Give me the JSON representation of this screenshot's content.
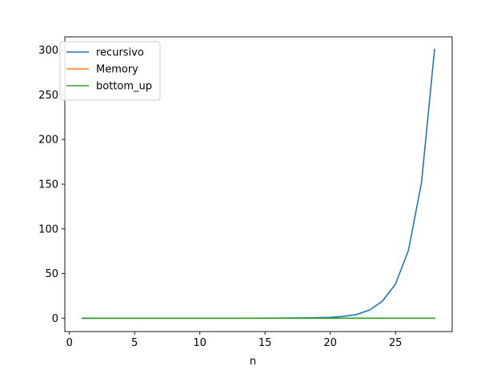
{
  "chart_data": {
    "type": "line",
    "title": "",
    "xlabel": "n",
    "ylabel": "",
    "xlim": [
      -0.35,
      29.35
    ],
    "ylim": [
      -15,
      315
    ],
    "xticks": [
      0,
      5,
      10,
      15,
      20,
      25
    ],
    "yticks": [
      0,
      50,
      100,
      150,
      200,
      250,
      300
    ],
    "grid": false,
    "legend": "top-left",
    "x": [
      1,
      2,
      3,
      4,
      5,
      6,
      7,
      8,
      9,
      10,
      11,
      12,
      13,
      14,
      15,
      16,
      17,
      18,
      19,
      20,
      21,
      22,
      23,
      24,
      25,
      26,
      27,
      28
    ],
    "series": [
      {
        "name": "recursivo",
        "color": "#1f77b4",
        "values": [
          0,
          0,
          0,
          0,
          0,
          0,
          0,
          0,
          0,
          0,
          0,
          0,
          0,
          0,
          0.1,
          0.1,
          0.2,
          0.3,
          0.5,
          0.9,
          2,
          4,
          9,
          19,
          38,
          76,
          152,
          301
        ]
      },
      {
        "name": "Memory",
        "color": "#ff7f0e",
        "values": [
          0,
          0,
          0,
          0,
          0,
          0,
          0,
          0,
          0,
          0,
          0,
          0,
          0,
          0,
          0,
          0,
          0,
          0,
          0,
          0,
          0,
          0,
          0,
          0,
          0,
          0,
          0,
          0
        ]
      },
      {
        "name": "bottom_up",
        "color": "#2ca02c",
        "values": [
          0,
          0,
          0,
          0,
          0,
          0,
          0,
          0,
          0,
          0,
          0,
          0,
          0,
          0,
          0,
          0,
          0,
          0,
          0,
          0,
          0,
          0,
          0,
          0,
          0,
          0,
          0,
          0
        ]
      }
    ]
  }
}
